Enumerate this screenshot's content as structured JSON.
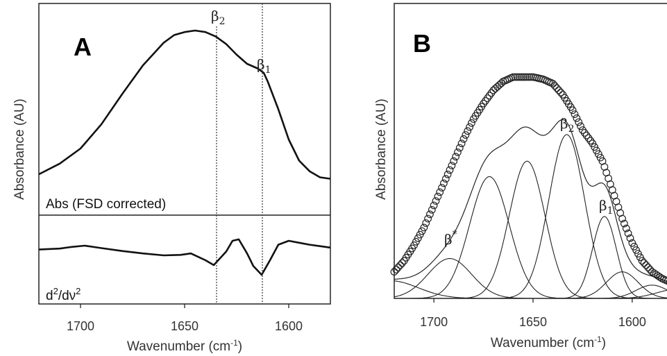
{
  "chart_data": [
    {
      "panel": "A",
      "type": "line",
      "xlabel": "Wavenumber (cm-1)",
      "ylabel": "Absorbance (AU)",
      "xlim": [
        1720,
        1580
      ],
      "x_reversed": true,
      "xticks": [
        "1700",
        "1650",
        "1600"
      ],
      "xtick_values": [
        1700,
        1650,
        1600
      ],
      "subpanels": [
        {
          "label": "Abs (FSD corrected)",
          "series": [
            {
              "name": "Abs (FSD corrected)",
              "x": [
                1720,
                1710,
                1700,
                1690,
                1680,
                1670,
                1660,
                1655,
                1650,
                1645,
                1640,
                1635,
                1630,
                1625,
                1620,
                1615,
                1612,
                1610,
                1605,
                1600,
                1595,
                1590,
                1585,
                1580
              ],
              "y": [
                0.05,
                0.12,
                0.22,
                0.38,
                0.58,
                0.77,
                0.92,
                0.97,
                0.99,
                1.0,
                0.99,
                0.96,
                0.91,
                0.84,
                0.78,
                0.75,
                0.72,
                0.66,
                0.48,
                0.28,
                0.14,
                0.07,
                0.03,
                0.02
              ]
            }
          ]
        },
        {
          "label": "d2/dv2",
          "series": [
            {
              "name": "d2/dv2",
              "x": [
                1720,
                1710,
                1705,
                1698,
                1690,
                1680,
                1670,
                1660,
                1652,
                1647,
                1643,
                1640,
                1636,
                1630,
                1627,
                1624,
                1620,
                1617,
                1613,
                1609,
                1605,
                1600,
                1595,
                1590,
                1585,
                1580
              ],
              "y": [
                0.72,
                0.74,
                0.77,
                0.8,
                0.75,
                0.69,
                0.64,
                0.6,
                0.61,
                0.64,
                0.56,
                0.5,
                0.4,
                0.68,
                0.9,
                0.93,
                0.64,
                0.38,
                0.2,
                0.5,
                0.82,
                0.9,
                0.86,
                0.82,
                0.79,
                0.76
              ]
            }
          ]
        }
      ],
      "annotations": [
        {
          "text": "β2",
          "x": 1636
        },
        {
          "text": "β1",
          "x": 1613
        }
      ]
    },
    {
      "panel": "B",
      "type": "line",
      "xlabel": "Wavenumber (cm-1)",
      "ylabel": "Absorbance (AU)",
      "xlim": [
        1720,
        1580
      ],
      "x_reversed": true,
      "xticks": [
        "1700",
        "1650",
        "1600"
      ],
      "xtick_values": [
        1700,
        1650,
        1600
      ],
      "ylim": [
        0,
        1.05
      ],
      "data_points": {
        "x": [
          1720,
          1715,
          1710,
          1705,
          1700,
          1695,
          1690,
          1685,
          1680,
          1675,
          1670,
          1665,
          1660,
          1655,
          1650,
          1645,
          1640,
          1635,
          1630,
          1625,
          1620,
          1615,
          1610,
          1605,
          1600,
          1595,
          1590,
          1585,
          1580
        ],
        "y": [
          0.12,
          0.17,
          0.24,
          0.32,
          0.42,
          0.52,
          0.62,
          0.72,
          0.81,
          0.88,
          0.94,
          0.98,
          1.0,
          1.0,
          1.0,
          0.99,
          0.97,
          0.92,
          0.85,
          0.76,
          0.7,
          0.62,
          0.49,
          0.36,
          0.25,
          0.17,
          0.12,
          0.09,
          0.07
        ]
      },
      "components": [
        {
          "center": 1722,
          "height": 0.08,
          "width": 14,
          "label": ""
        },
        {
          "center": 1692,
          "height": 0.18,
          "width": 11,
          "label": "β*"
        },
        {
          "center": 1672,
          "height": 0.55,
          "width": 10,
          "label": ""
        },
        {
          "center": 1653,
          "height": 0.62,
          "width": 9,
          "label": ""
        },
        {
          "center": 1633,
          "height": 0.74,
          "width": 9,
          "label": "β2"
        },
        {
          "center": 1614,
          "height": 0.37,
          "width": 6,
          "label": "β1"
        },
        {
          "center": 1605,
          "height": 0.12,
          "width": 8,
          "label": ""
        },
        {
          "center": 1590,
          "height": 0.06,
          "width": 8,
          "label": ""
        },
        {
          "center": 1578,
          "height": 0.04,
          "width": 10,
          "label": ""
        }
      ]
    }
  ],
  "text": {
    "panelA_letter": "A",
    "panelB_letter": "B",
    "abs_label": "Abs (FSD corrected)",
    "deriv_label_main": "d",
    "deriv_label_sup1": "2",
    "deriv_label_mid": "/dν",
    "deriv_label_sup2": "2",
    "ylabel_A": "Absorbance (AU)",
    "ylabel_B": "Absorbance (AU)",
    "xlabel_A_main": "Wavenumber (cm",
    "xlabel_A_sup": "-1",
    "xlabel_A_end": ")",
    "xlabel_B_main": "Wavenumber (cm",
    "xlabel_B_sup": "-1",
    "xlabel_B_end": ")",
    "beta2_A_main": "β",
    "beta2_A_sub": "2",
    "beta1_A_main": "β",
    "beta1_A_sub": "1",
    "beta2_B_main": "β",
    "beta2_B_sub": "2",
    "beta1_B_main": "β",
    "beta1_B_sub": "1",
    "betastar_B_main": "β",
    "betastar_B_sup": "*"
  }
}
